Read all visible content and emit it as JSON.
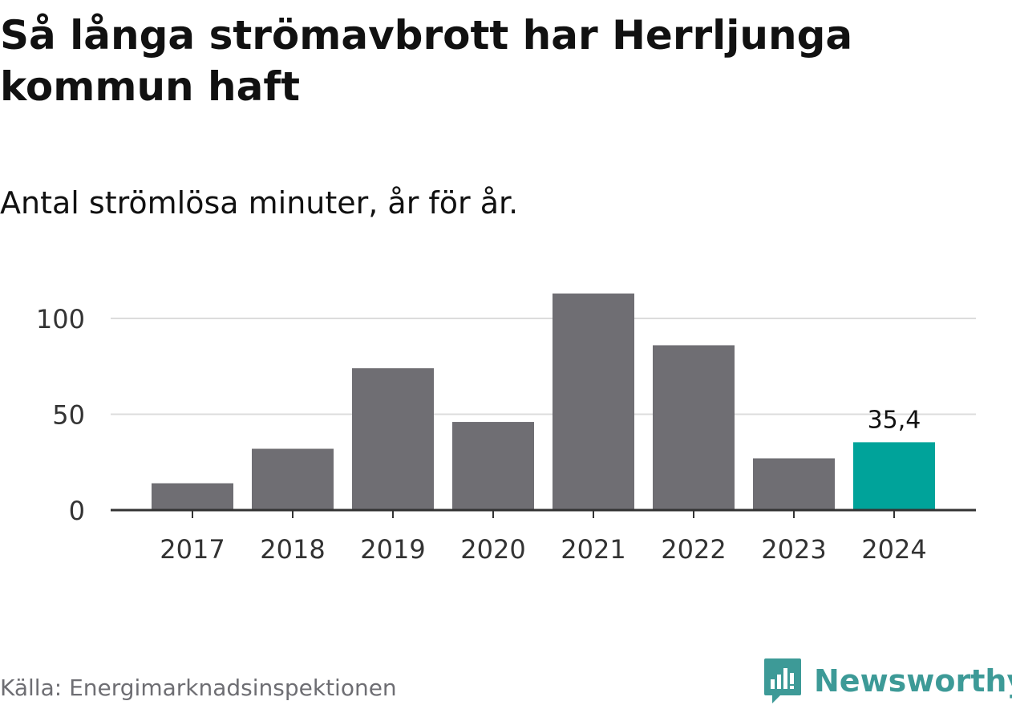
{
  "title": "Så långa strömavbrott har Herrljunga kommun haft",
  "subtitle": "Antal strömlösa minuter, år för år.",
  "source": "Källa: Energimarknadsinspektionen",
  "brand": {
    "name": "Newsworthy",
    "icon": "newsworthy-logo-icon",
    "color": "#3d9a97"
  },
  "chart_data": {
    "type": "bar",
    "categories": [
      "2017",
      "2018",
      "2019",
      "2020",
      "2021",
      "2022",
      "2023",
      "2024"
    ],
    "values": [
      14,
      32,
      74,
      46,
      113,
      86,
      27,
      35.4
    ],
    "data_labels": [
      {
        "category": "2024",
        "text": "35,4"
      }
    ],
    "highlight_category": "2024",
    "colors": {
      "default": "#6f6e73",
      "highlight": "#00a39a",
      "grid": "#dcdcdc",
      "axis": "#333333"
    },
    "y_ticks": [
      0,
      50,
      100
    ],
    "ylim": [
      0,
      113
    ],
    "grid": true,
    "xlabel": "",
    "ylabel": ""
  }
}
